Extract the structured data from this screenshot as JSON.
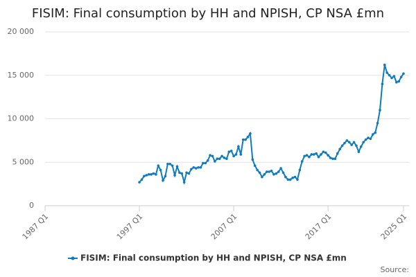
{
  "chart_data": {
    "type": "line",
    "title": "FISIM: Final consumption by HH and NPISH, CP NSA £mn",
    "source": "Source:",
    "categories": [
      "1987 Q1",
      null,
      null,
      null,
      null,
      null,
      null,
      null,
      null,
      null,
      null,
      null,
      null,
      null,
      null,
      null,
      null,
      null,
      null,
      null,
      null,
      null,
      null,
      null,
      null,
      null,
      null,
      null,
      null,
      null,
      null,
      null,
      null,
      null,
      null,
      null,
      null,
      null,
      null,
      null,
      "1997 Q1",
      null,
      null,
      null,
      null,
      null,
      null,
      null,
      null,
      null,
      null,
      null,
      null,
      null,
      null,
      null,
      null,
      null,
      null,
      null,
      null,
      null,
      null,
      null,
      null,
      null,
      null,
      null,
      null,
      null,
      null,
      null,
      null,
      null,
      null,
      null,
      null,
      null,
      null,
      null,
      "2007 Q1",
      null,
      null,
      null,
      null,
      null,
      null,
      null,
      null,
      null,
      null,
      null,
      null,
      null,
      null,
      null,
      null,
      null,
      null,
      null,
      null,
      null,
      null,
      null,
      null,
      null,
      null,
      null,
      null,
      null,
      null,
      null,
      null,
      null,
      null,
      null,
      null,
      null,
      null,
      null,
      "2017 Q1",
      null,
      null,
      null,
      null,
      null,
      null,
      null,
      null,
      null,
      null,
      null,
      null,
      null,
      null,
      null,
      null,
      null,
      null,
      null,
      null,
      null,
      null,
      null,
      null,
      null,
      null,
      null,
      null,
      null,
      null,
      null,
      "2025 Q1"
    ],
    "series": [
      {
        "name": "FISIM: Final consumption by HH and NPISH, CP NSA £mn",
        "color": "#0f7bbd",
        "values": [
          null,
          null,
          null,
          null,
          null,
          null,
          null,
          null,
          null,
          null,
          null,
          null,
          null,
          null,
          null,
          null,
          null,
          null,
          null,
          null,
          null,
          null,
          null,
          null,
          null,
          null,
          null,
          null,
          null,
          null,
          null,
          null,
          null,
          null,
          null,
          null,
          null,
          null,
          null,
          null,
          2700,
          3000,
          3400,
          3500,
          3600,
          3600,
          3700,
          3600,
          4600,
          4100,
          2900,
          3400,
          4800,
          4800,
          4600,
          3500,
          4500,
          3800,
          3700,
          2700,
          3800,
          3700,
          4200,
          4400,
          4300,
          4400,
          4400,
          4900,
          4900,
          5200,
          5800,
          5700,
          5100,
          5400,
          5400,
          5700,
          5500,
          5400,
          6200,
          6300,
          5700,
          5900,
          6800,
          5900,
          7600,
          7600,
          7900,
          8300,
          5300,
          4600,
          4100,
          3800,
          3300,
          3600,
          3900,
          3900,
          4000,
          3600,
          3700,
          3900,
          4300,
          3800,
          3300,
          3000,
          3000,
          3200,
          3300,
          3000,
          4100,
          5100,
          5700,
          5800,
          5600,
          5900,
          5900,
          6000,
          5600,
          5900,
          6200,
          6100,
          5800,
          5500,
          5400,
          5400,
          6000,
          6500,
          6900,
          7200,
          7500,
          7300,
          7000,
          7300,
          6900,
          6200,
          6800,
          7300,
          7600,
          7800,
          7700,
          8200,
          8400,
          9500,
          11000,
          14000,
          16200,
          15300,
          15000,
          14700,
          14900,
          14200,
          14300,
          14800,
          15200
        ]
      }
    ],
    "ylim": [
      0,
      20000
    ],
    "yticks": [
      0,
      {
        "value": 5000,
        "label": "5 000"
      },
      {
        "value": 10000,
        "label": "10 000"
      },
      {
        "value": 15000,
        "label": "15 000"
      },
      {
        "value": 20000,
        "label": "20 000"
      }
    ],
    "grid": true
  }
}
